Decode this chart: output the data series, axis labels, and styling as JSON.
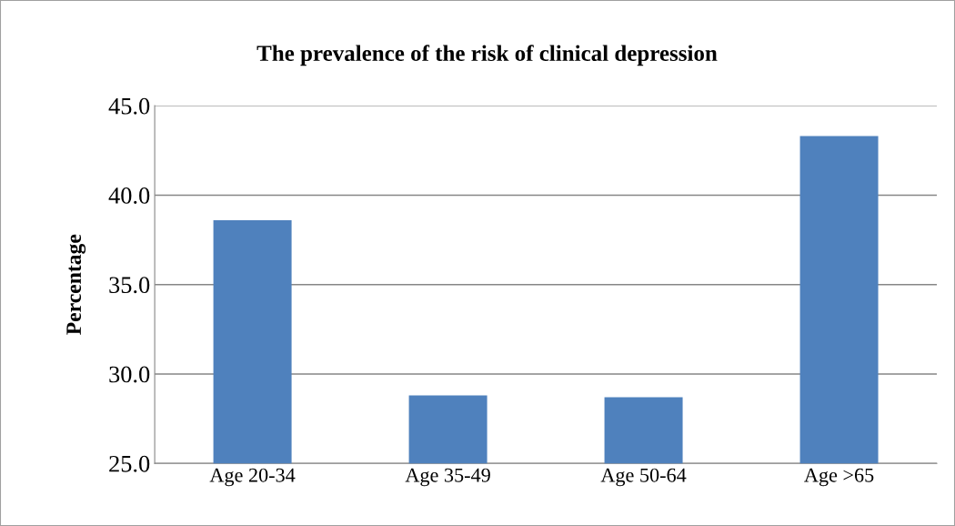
{
  "chart_data": {
    "type": "bar",
    "title": "The prevalence of the risk of clinical depression",
    "ylabel": "Percentage",
    "categories": [
      "Age 20-34",
      "Age 35-49",
      "Age 50-64",
      "Age >65"
    ],
    "values": [
      38.6,
      28.8,
      28.7,
      43.3
    ],
    "color": "#4f81bd",
    "ylim": [
      25,
      45
    ],
    "yticks": [
      {
        "value": 25,
        "label": "25.0"
      },
      {
        "value": 30,
        "label": "30.0"
      },
      {
        "value": 35,
        "label": "35.0"
      },
      {
        "value": 40,
        "label": "40.0"
      },
      {
        "value": 45,
        "label": "45.0"
      }
    ],
    "grid": "y"
  }
}
